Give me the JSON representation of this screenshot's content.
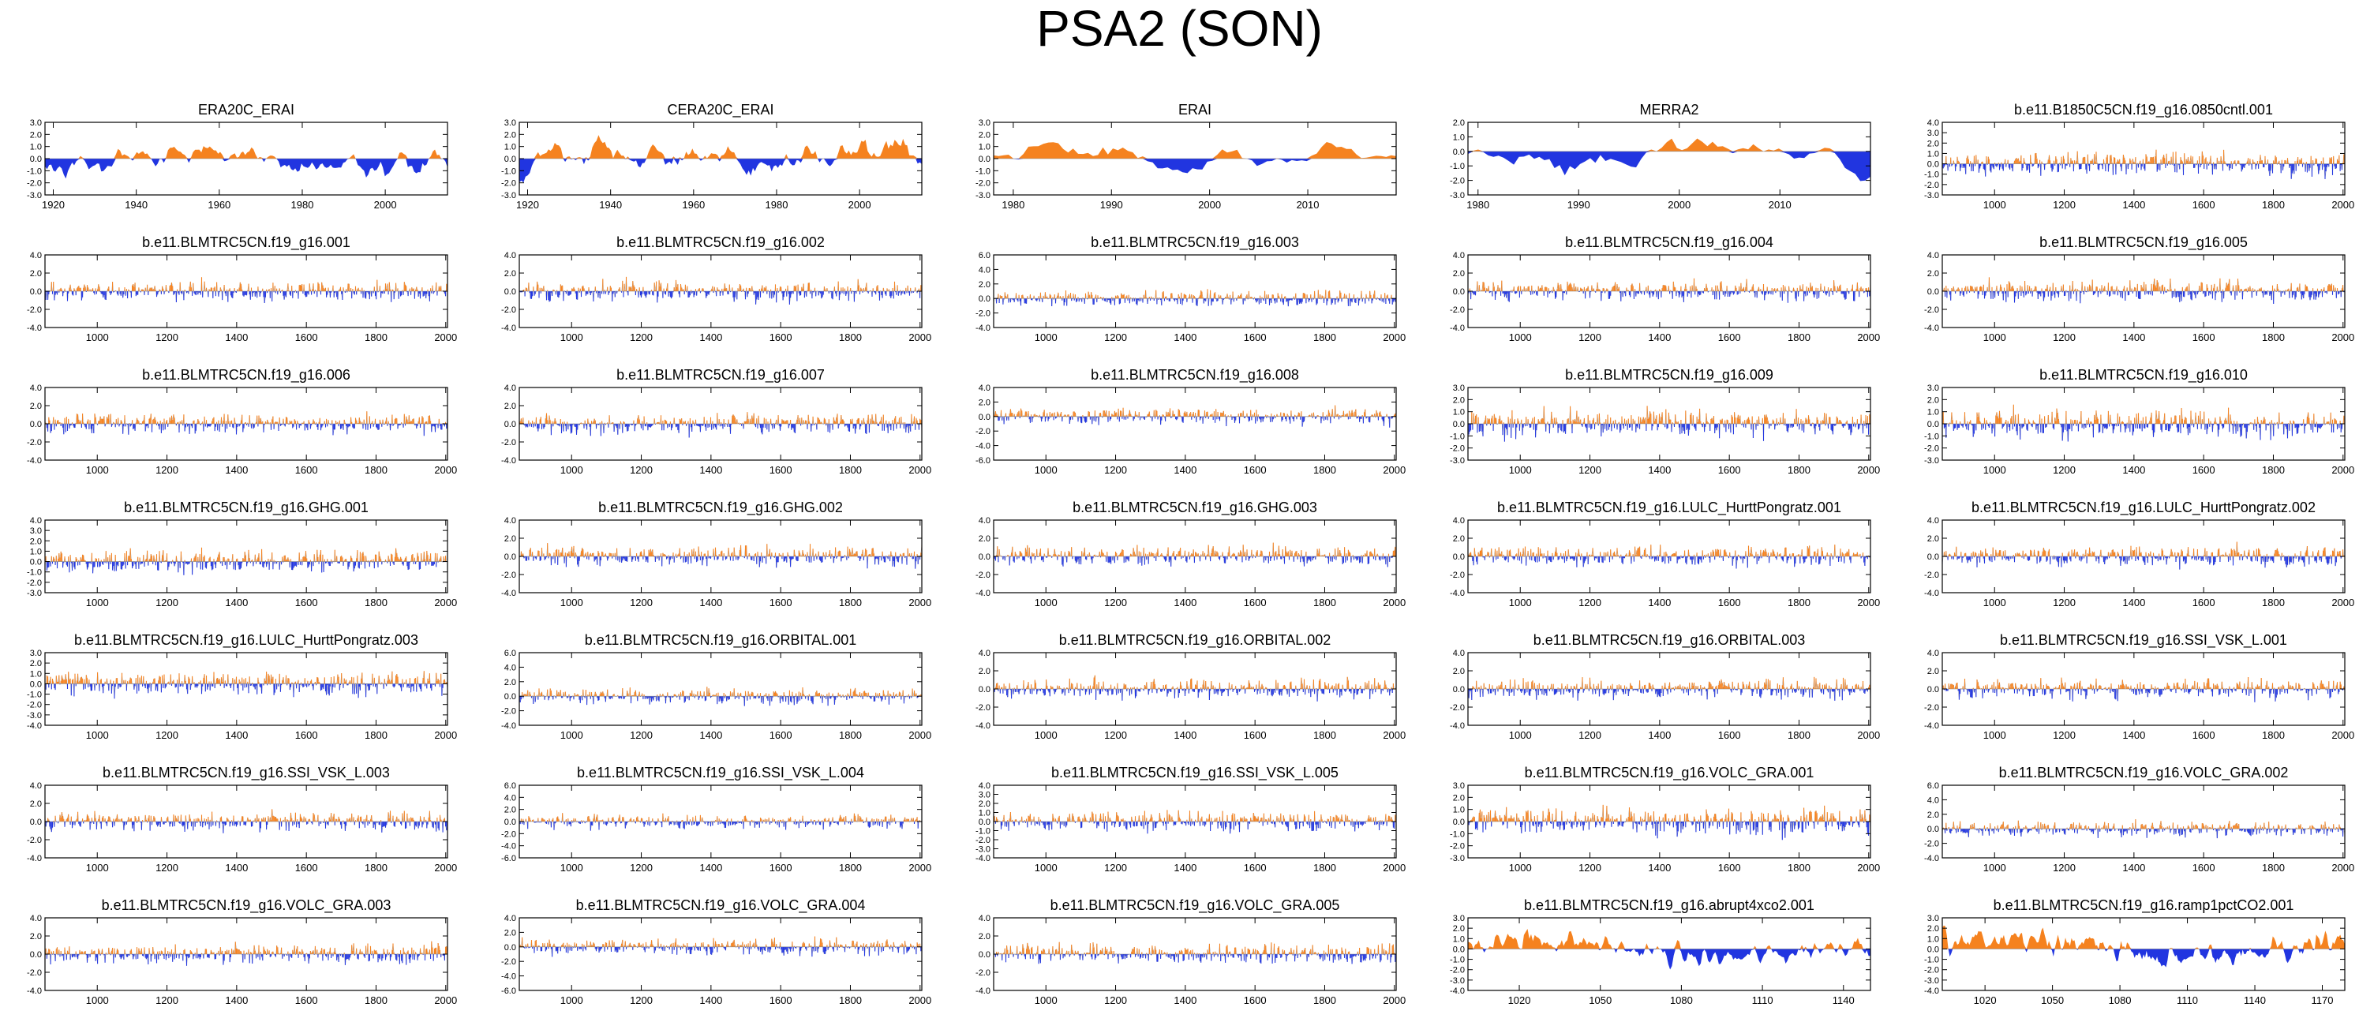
{
  "figure": {
    "title": "PSA2 (SON)"
  },
  "colors": {
    "positive": "#f5821f",
    "negative": "#2135e0",
    "axis": "#000000",
    "zero": "#888888"
  },
  "chart_data": [
    {
      "type": "area",
      "title": "ERA20C_ERAI",
      "xlim": [
        1918,
        2015
      ],
      "ylim": [
        -3,
        3
      ],
      "yticks": [
        3,
        2,
        1,
        0,
        -1,
        -2,
        -3
      ],
      "xticks": [
        1920,
        1940,
        1960,
        1980,
        2000
      ],
      "style": "smooth",
      "seed": 11
    },
    {
      "type": "area",
      "title": "CERA20C_ERAI",
      "xlim": [
        1918,
        2015
      ],
      "ylim": [
        -3,
        3
      ],
      "yticks": [
        3,
        2,
        1,
        0,
        -1,
        -2,
        -3
      ],
      "xticks": [
        1920,
        1940,
        1960,
        1980,
        2000
      ],
      "style": "smooth",
      "seed": 12
    },
    {
      "type": "area",
      "title": "ERAI",
      "xlim": [
        1978,
        2019
      ],
      "ylim": [
        -3,
        3
      ],
      "yticks": [
        3,
        2,
        1,
        0,
        -1,
        -2,
        -3
      ],
      "xticks": [
        1980,
        1990,
        2000,
        2010
      ],
      "style": "smooth",
      "seed": 13
    },
    {
      "type": "area",
      "title": "MERRA2",
      "xlim": [
        1979,
        2019
      ],
      "ylim": [
        -3,
        2
      ],
      "yticks": [
        2,
        1,
        0,
        -1,
        -2,
        -3
      ],
      "xticks": [
        1980,
        1990,
        2000,
        2010
      ],
      "style": "smooth",
      "seed": 14
    },
    {
      "type": "area",
      "title": "b.e11.B1850C5CN.f19_g16.0850cntl.001",
      "xlim": [
        850,
        2005
      ],
      "ylim": [
        -3,
        4
      ],
      "yticks": [
        4,
        3,
        2,
        1,
        0,
        -1,
        -2,
        -3
      ],
      "xticks": [
        1000,
        1200,
        1400,
        1600,
        1800,
        2000
      ],
      "style": "dense",
      "seed": 15
    },
    {
      "type": "area",
      "title": "b.e11.BLMTRC5CN.f19_g16.001",
      "xlim": [
        850,
        2005
      ],
      "ylim": [
        -4,
        4
      ],
      "yticks": [
        4,
        2,
        0,
        -2,
        -4
      ],
      "xticks": [
        1000,
        1200,
        1400,
        1600,
        1800,
        2000
      ],
      "style": "dense",
      "seed": 21
    },
    {
      "type": "area",
      "title": "b.e11.BLMTRC5CN.f19_g16.002",
      "xlim": [
        850,
        2005
      ],
      "ylim": [
        -4,
        4
      ],
      "yticks": [
        4,
        2,
        0,
        -2,
        -4
      ],
      "xticks": [
        1000,
        1200,
        1400,
        1600,
        1800,
        2000
      ],
      "style": "dense",
      "seed": 22
    },
    {
      "type": "area",
      "title": "b.e11.BLMTRC5CN.f19_g16.003",
      "xlim": [
        850,
        2005
      ],
      "ylim": [
        -4,
        6
      ],
      "yticks": [
        6,
        4,
        2,
        0,
        -2,
        -4
      ],
      "xticks": [
        1000,
        1200,
        1400,
        1600,
        1800,
        2000
      ],
      "style": "dense",
      "seed": 23
    },
    {
      "type": "area",
      "title": "b.e11.BLMTRC5CN.f19_g16.004",
      "xlim": [
        850,
        2005
      ],
      "ylim": [
        -4,
        4
      ],
      "yticks": [
        4,
        2,
        0,
        -2,
        -4
      ],
      "xticks": [
        1000,
        1200,
        1400,
        1600,
        1800,
        2000
      ],
      "style": "dense",
      "seed": 24
    },
    {
      "type": "area",
      "title": "b.e11.BLMTRC5CN.f19_g16.005",
      "xlim": [
        850,
        2005
      ],
      "ylim": [
        -4,
        4
      ],
      "yticks": [
        4,
        2,
        0,
        -2,
        -4
      ],
      "xticks": [
        1000,
        1200,
        1400,
        1600,
        1800,
        2000
      ],
      "style": "dense",
      "seed": 25
    },
    {
      "type": "area",
      "title": "b.e11.BLMTRC5CN.f19_g16.006",
      "xlim": [
        850,
        2005
      ],
      "ylim": [
        -4,
        4
      ],
      "yticks": [
        4,
        2,
        0,
        -2,
        -4
      ],
      "xticks": [
        1000,
        1200,
        1400,
        1600,
        1800,
        2000
      ],
      "style": "dense",
      "seed": 31
    },
    {
      "type": "area",
      "title": "b.e11.BLMTRC5CN.f19_g16.007",
      "xlim": [
        850,
        2005
      ],
      "ylim": [
        -4,
        4
      ],
      "yticks": [
        4,
        2,
        0,
        -2,
        -4
      ],
      "xticks": [
        1000,
        1200,
        1400,
        1600,
        1800,
        2000
      ],
      "style": "dense",
      "seed": 32
    },
    {
      "type": "area",
      "title": "b.e11.BLMTRC5CN.f19_g16.008",
      "xlim": [
        850,
        2005
      ],
      "ylim": [
        -6,
        4
      ],
      "yticks": [
        4,
        2,
        0,
        -2,
        -4,
        -6
      ],
      "xticks": [
        1000,
        1200,
        1400,
        1600,
        1800,
        2000
      ],
      "style": "dense",
      "seed": 33
    },
    {
      "type": "area",
      "title": "b.e11.BLMTRC5CN.f19_g16.009",
      "xlim": [
        850,
        2005
      ],
      "ylim": [
        -3,
        3
      ],
      "yticks": [
        3,
        2,
        1,
        0,
        -1,
        -2,
        -3
      ],
      "xticks": [
        1000,
        1200,
        1400,
        1600,
        1800,
        2000
      ],
      "style": "dense",
      "seed": 34
    },
    {
      "type": "area",
      "title": "b.e11.BLMTRC5CN.f19_g16.010",
      "xlim": [
        850,
        2005
      ],
      "ylim": [
        -3,
        3
      ],
      "yticks": [
        3,
        2,
        1,
        0,
        -1,
        -2,
        -3
      ],
      "xticks": [
        1000,
        1200,
        1400,
        1600,
        1800,
        2000
      ],
      "style": "dense",
      "seed": 35
    },
    {
      "type": "area",
      "title": "b.e11.BLMTRC5CN.f19_g16.GHG.001",
      "xlim": [
        850,
        2005
      ],
      "ylim": [
        -3,
        4
      ],
      "yticks": [
        4,
        3,
        2,
        1,
        0,
        -1,
        -2,
        -3
      ],
      "xticks": [
        1000,
        1200,
        1400,
        1600,
        1800,
        2000
      ],
      "style": "dense",
      "seed": 41
    },
    {
      "type": "area",
      "title": "b.e11.BLMTRC5CN.f19_g16.GHG.002",
      "xlim": [
        850,
        2005
      ],
      "ylim": [
        -4,
        4
      ],
      "yticks": [
        4,
        2,
        0,
        -2,
        -4
      ],
      "xticks": [
        1000,
        1200,
        1400,
        1600,
        1800,
        2000
      ],
      "style": "dense",
      "seed": 42
    },
    {
      "type": "area",
      "title": "b.e11.BLMTRC5CN.f19_g16.GHG.003",
      "xlim": [
        850,
        2005
      ],
      "ylim": [
        -4,
        4
      ],
      "yticks": [
        4,
        2,
        0,
        -2,
        -4
      ],
      "xticks": [
        1000,
        1200,
        1400,
        1600,
        1800,
        2000
      ],
      "style": "dense",
      "seed": 43
    },
    {
      "type": "area",
      "title": "b.e11.BLMTRC5CN.f19_g16.LULC_HurttPongratz.001",
      "xlim": [
        850,
        2005
      ],
      "ylim": [
        -4,
        4
      ],
      "yticks": [
        4,
        2,
        0,
        -2,
        -4
      ],
      "xticks": [
        1000,
        1200,
        1400,
        1600,
        1800,
        2000
      ],
      "style": "dense",
      "seed": 44
    },
    {
      "type": "area",
      "title": "b.e11.BLMTRC5CN.f19_g16.LULC_HurttPongratz.002",
      "xlim": [
        850,
        2005
      ],
      "ylim": [
        -4,
        4
      ],
      "yticks": [
        4,
        2,
        0,
        -2,
        -4
      ],
      "xticks": [
        1000,
        1200,
        1400,
        1600,
        1800,
        2000
      ],
      "style": "dense",
      "seed": 45
    },
    {
      "type": "area",
      "title": "b.e11.BLMTRC5CN.f19_g16.LULC_HurttPongratz.003",
      "xlim": [
        850,
        2005
      ],
      "ylim": [
        -4,
        3
      ],
      "yticks": [
        3,
        2,
        1,
        0,
        -1,
        -2,
        -3,
        -4
      ],
      "xticks": [
        1000,
        1200,
        1400,
        1600,
        1800,
        2000
      ],
      "style": "dense",
      "seed": 51
    },
    {
      "type": "area",
      "title": "b.e11.BLMTRC5CN.f19_g16.ORBITAL.001",
      "xlim": [
        850,
        2005
      ],
      "ylim": [
        -4,
        6
      ],
      "yticks": [
        6,
        4,
        2,
        0,
        -2,
        -4
      ],
      "xticks": [
        1000,
        1200,
        1400,
        1600,
        1800,
        2000
      ],
      "style": "dense",
      "seed": 52
    },
    {
      "type": "area",
      "title": "b.e11.BLMTRC5CN.f19_g16.ORBITAL.002",
      "xlim": [
        850,
        2005
      ],
      "ylim": [
        -4,
        4
      ],
      "yticks": [
        4,
        2,
        0,
        -2,
        -4
      ],
      "xticks": [
        1000,
        1200,
        1400,
        1600,
        1800,
        2000
      ],
      "style": "dense",
      "seed": 53
    },
    {
      "type": "area",
      "title": "b.e11.BLMTRC5CN.f19_g16.ORBITAL.003",
      "xlim": [
        850,
        2005
      ],
      "ylim": [
        -4,
        4
      ],
      "yticks": [
        4,
        2,
        0,
        -2,
        -4
      ],
      "xticks": [
        1000,
        1200,
        1400,
        1600,
        1800,
        2000
      ],
      "style": "dense",
      "seed": 54
    },
    {
      "type": "area",
      "title": "b.e11.BLMTRC5CN.f19_g16.SSI_VSK_L.001",
      "xlim": [
        850,
        2005
      ],
      "ylim": [
        -4,
        4
      ],
      "yticks": [
        4,
        2,
        0,
        -2,
        -4
      ],
      "xticks": [
        1000,
        1200,
        1400,
        1600,
        1800,
        2000
      ],
      "style": "dense",
      "seed": 55
    },
    {
      "type": "area",
      "title": "b.e11.BLMTRC5CN.f19_g16.SSI_VSK_L.003",
      "xlim": [
        850,
        2005
      ],
      "ylim": [
        -4,
        4
      ],
      "yticks": [
        4,
        2,
        0,
        -2,
        -4
      ],
      "xticks": [
        1000,
        1200,
        1400,
        1600,
        1800,
        2000
      ],
      "style": "dense",
      "seed": 61
    },
    {
      "type": "area",
      "title": "b.e11.BLMTRC5CN.f19_g16.SSI_VSK_L.004",
      "xlim": [
        850,
        2005
      ],
      "ylim": [
        -6,
        6
      ],
      "yticks": [
        6,
        4,
        2,
        0,
        -2,
        -4,
        -6
      ],
      "xticks": [
        1000,
        1200,
        1400,
        1600,
        1800,
        2000
      ],
      "style": "dense",
      "seed": 62
    },
    {
      "type": "area",
      "title": "b.e11.BLMTRC5CN.f19_g16.SSI_VSK_L.005",
      "xlim": [
        850,
        2005
      ],
      "ylim": [
        -4,
        4
      ],
      "yticks": [
        4,
        3,
        2,
        1,
        0,
        -1,
        -2,
        -3,
        -4
      ],
      "xticks": [
        1000,
        1200,
        1400,
        1600,
        1800,
        2000
      ],
      "style": "dense",
      "seed": 63
    },
    {
      "type": "area",
      "title": "b.e11.BLMTRC5CN.f19_g16.VOLC_GRA.001",
      "xlim": [
        850,
        2005
      ],
      "ylim": [
        -3,
        3
      ],
      "yticks": [
        3,
        2,
        1,
        0,
        -1,
        -2,
        -3
      ],
      "xticks": [
        1000,
        1200,
        1400,
        1600,
        1800,
        2000
      ],
      "style": "dense",
      "seed": 64
    },
    {
      "type": "area",
      "title": "b.e11.BLMTRC5CN.f19_g16.VOLC_GRA.002",
      "xlim": [
        850,
        2005
      ],
      "ylim": [
        -4,
        6
      ],
      "yticks": [
        6,
        4,
        2,
        0,
        -2,
        -4
      ],
      "xticks": [
        1000,
        1200,
        1400,
        1600,
        1800,
        2000
      ],
      "style": "dense",
      "seed": 65
    },
    {
      "type": "area",
      "title": "b.e11.BLMTRC5CN.f19_g16.VOLC_GRA.003",
      "xlim": [
        850,
        2005
      ],
      "ylim": [
        -4,
        4
      ],
      "yticks": [
        4,
        2,
        0,
        -2,
        -4
      ],
      "xticks": [
        1000,
        1200,
        1400,
        1600,
        1800,
        2000
      ],
      "style": "dense",
      "seed": 71
    },
    {
      "type": "area",
      "title": "b.e11.BLMTRC5CN.f19_g16.VOLC_GRA.004",
      "xlim": [
        850,
        2005
      ],
      "ylim": [
        -6,
        4
      ],
      "yticks": [
        4,
        2,
        0,
        -2,
        -4,
        -6
      ],
      "xticks": [
        1000,
        1200,
        1400,
        1600,
        1800,
        2000
      ],
      "style": "dense",
      "seed": 72
    },
    {
      "type": "area",
      "title": "b.e11.BLMTRC5CN.f19_g16.VOLC_GRA.005",
      "xlim": [
        850,
        2005
      ],
      "ylim": [
        -4,
        4
      ],
      "yticks": [
        4,
        2,
        0,
        -2,
        -4
      ],
      "xticks": [
        1000,
        1200,
        1400,
        1600,
        1800,
        2000
      ],
      "style": "dense",
      "seed": 73
    },
    {
      "type": "area",
      "title": "b.e11.BLMTRC5CN.f19_g16.abrupt4xco2.001",
      "xlim": [
        1001,
        1150
      ],
      "ylim": [
        -4,
        3
      ],
      "yticks": [
        3,
        2,
        1,
        0,
        -1,
        -2,
        -3,
        -4
      ],
      "xticks": [
        1020,
        1050,
        1080,
        1110,
        1140
      ],
      "style": "medium",
      "seed": 74
    },
    {
      "type": "area",
      "title": "b.e11.BLMTRC5CN.f19_g16.ramp1pctCO2.001",
      "xlim": [
        1001,
        1180
      ],
      "ylim": [
        -4,
        3
      ],
      "yticks": [
        3,
        2,
        1,
        0,
        -1,
        -2,
        -3,
        -4
      ],
      "xticks": [
        1020,
        1050,
        1080,
        1110,
        1140,
        1170
      ],
      "style": "medium",
      "seed": 75
    }
  ]
}
